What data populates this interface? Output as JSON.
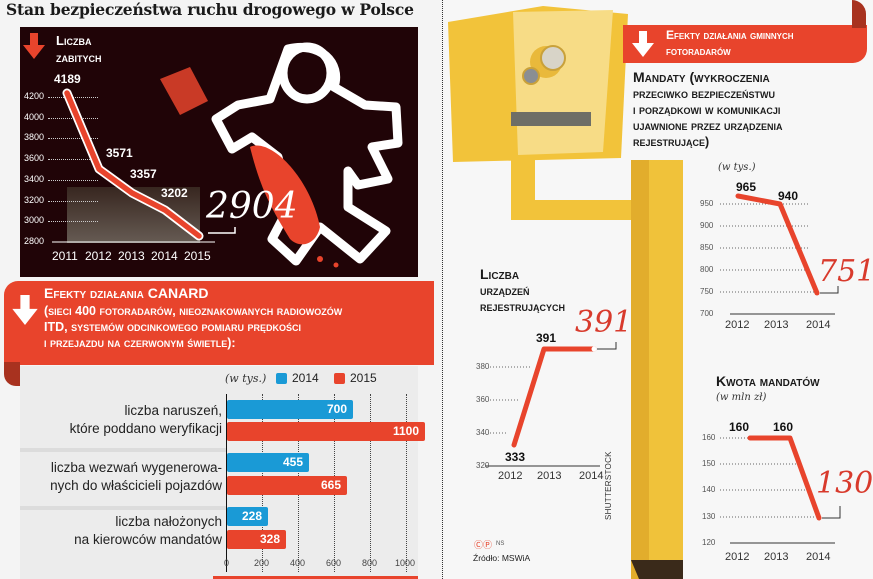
{
  "title": "Stan bezpieczeństwa ruchu drogowego w Polsce",
  "killed": {
    "title_line1": "Liczba",
    "title_line2": "zabitych",
    "highlight": "2904"
  },
  "canard": {
    "title": "Efekty działania CANARD",
    "subtitle_line1": "(sieci 400 fotoradarów, nieoznakowanych radiowozów",
    "subtitle_line2": "ITD, systemów odcinkowego pomiaru prędkości",
    "subtitle_line3": "i przejazdu na czerwonym świetle):",
    "unit": "(w tys.)",
    "legend_2014": "2014",
    "legend_2015": "2015"
  },
  "gminne": {
    "title_line1": "Efekty działania gminnych",
    "title_line2": "fotoradarów",
    "mandaty_line1": "Mandaty (wykroczenia",
    "mandaty_line2": "przeciwko bezpieczeństwu",
    "mandaty_line3": "i porządkowi w komunikacji",
    "mandaty_line4": "ujawnione przez urządzenia",
    "mandaty_line5": "rejestrujące)",
    "mandaty_unit": "(w tys.)",
    "mandaty_highlight": "751",
    "devices_line1": "Liczba",
    "devices_line2": "urządzeń",
    "devices_line3": "rejestrujących",
    "devices_highlight": "391",
    "amount_title": "Kwota mandatów",
    "amount_unit": "(w mln zł)",
    "amount_highlight": "130"
  },
  "footer": {
    "credit": "NS",
    "source": "Źródło: MSWiA",
    "photo": "SHUTTERSTOCK"
  },
  "colors": {
    "accent_red": "#e8442c",
    "blue_2014": "#1a9ad6",
    "dark_bg": "#200407"
  },
  "chart_data": [
    {
      "type": "line",
      "title": "Liczba zabitych",
      "x": [
        "2011",
        "2012",
        "2013",
        "2014",
        "2015"
      ],
      "values": [
        4189,
        3571,
        3357,
        3202,
        2904
      ],
      "yticks": [
        2800,
        3000,
        3200,
        3400,
        3600,
        3800,
        4000,
        4200
      ],
      "ylim": [
        2800,
        4200
      ]
    },
    {
      "type": "bar",
      "orientation": "horizontal",
      "title": "Efekty działania CANARD",
      "unit": "w tys.",
      "categories": [
        "liczba naruszeń, które poddano weryfikacji",
        "liczba wezwań wygenerowanych do właścicieli pojazdów",
        "liczba nałożonych na kierowców mandatów"
      ],
      "series": [
        {
          "name": "2014",
          "values": [
            700,
            455,
            228
          ]
        },
        {
          "name": "2015",
          "values": [
            1100,
            665,
            328
          ]
        }
      ],
      "xticks": [
        0,
        200,
        400,
        600,
        800,
        1000
      ],
      "xlim": [
        0,
        1100
      ]
    },
    {
      "type": "line",
      "title": "Mandaty (wykroczenia przeciwko bezpieczeństwu i porządkowi w komunikacji ujawnione przez urządzenia rejestrujące)",
      "unit": "w tys.",
      "x": [
        "2012",
        "2013",
        "2014"
      ],
      "values": [
        965,
        940,
        751
      ],
      "yticks": [
        700,
        750,
        800,
        850,
        900,
        950
      ],
      "ylim": [
        700,
        970
      ]
    },
    {
      "type": "line",
      "title": "Liczba urządzeń rejestrujących",
      "x": [
        "2012",
        "2013",
        "2014"
      ],
      "values": [
        333,
        391,
        391
      ],
      "yticks": [
        320,
        340,
        360,
        380
      ],
      "ylim": [
        320,
        395
      ]
    },
    {
      "type": "line",
      "title": "Kwota mandatów",
      "unit": "w mln zł",
      "x": [
        "2012",
        "2013",
        "2014"
      ],
      "values": [
        160,
        160,
        130
      ],
      "yticks": [
        120,
        130,
        140,
        150,
        160
      ],
      "ylim": [
        120,
        165
      ]
    }
  ]
}
